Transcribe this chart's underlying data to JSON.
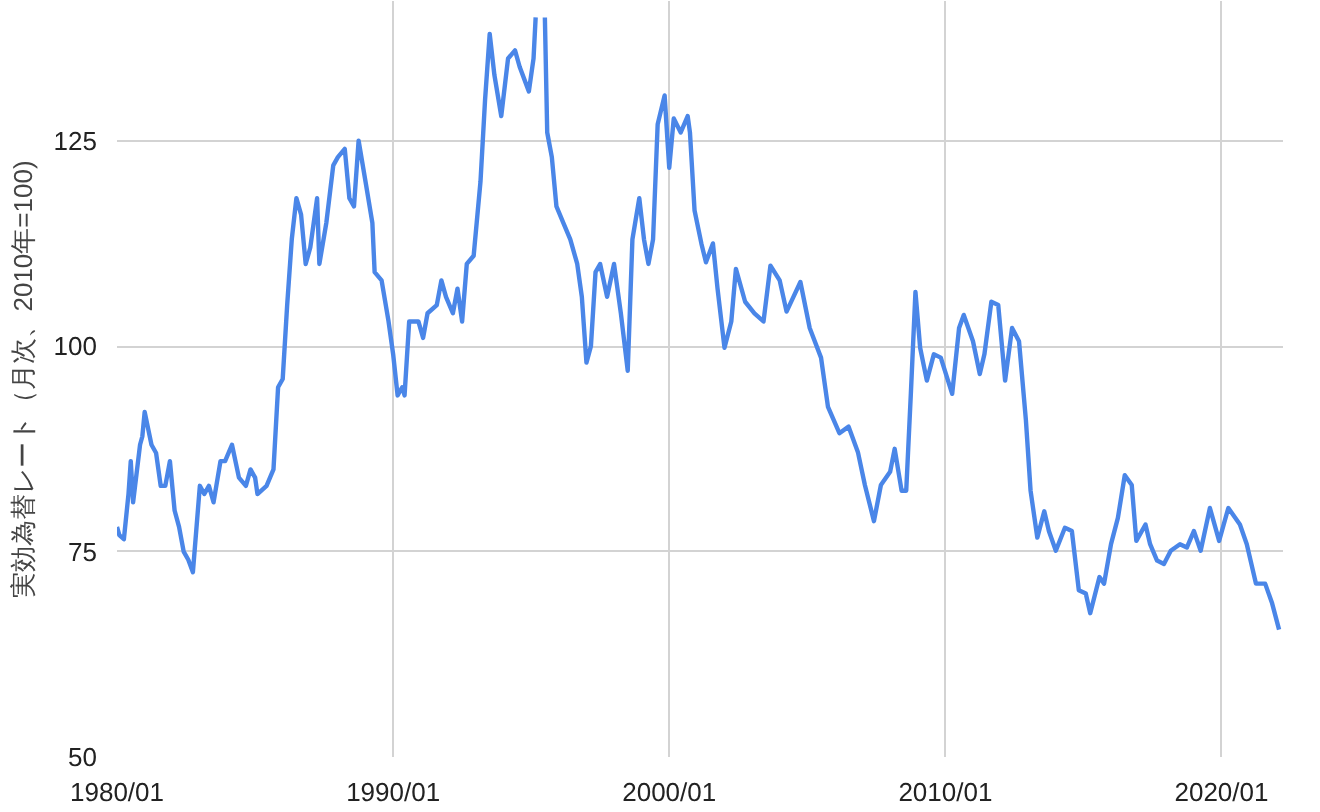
{
  "chart_data": {
    "type": "line",
    "ylabel": "実効為替レート（月次、2010年=100)",
    "xlim": [
      "1980-01",
      "2022-03-25"
    ],
    "ylim": [
      50,
      142
    ],
    "xticks": [
      {
        "value": "1980-01",
        "label": "1980/01"
      },
      {
        "value": "1990-01",
        "label": "1990/01"
      },
      {
        "value": "2000-01",
        "label": "2000/01"
      },
      {
        "value": "2010-01",
        "label": "2010/01"
      },
      {
        "value": "2020-01",
        "label": "2020/01"
      }
    ],
    "yticks": [
      50,
      75,
      100,
      125
    ],
    "grid": true,
    "line_style": "solid",
    "series": [
      {
        "color": "#4a86e8",
        "x": [
          "1980-01",
          "1980-02",
          "1980-04",
          "1980-06",
          "1980-07",
          "1980-08",
          "1980-11",
          "1980-12",
          "1981-01",
          "1981-04",
          "1981-06",
          "1981-08",
          "1981-10",
          "1981-12",
          "1982-02",
          "1982-04",
          "1982-06",
          "1982-08",
          "1982-10",
          "1983-01",
          "1983-03",
          "1983-05",
          "1983-07",
          "1983-10",
          "1983-12",
          "1984-03",
          "1984-06",
          "1984-09",
          "1984-11",
          "1985-01",
          "1985-02",
          "1985-06",
          "1985-09",
          "1985-11",
          "1986-01",
          "1986-03",
          "1986-05",
          "1986-07",
          "1986-09",
          "1986-11",
          "1987-01",
          "1987-04",
          "1987-05",
          "1987-08",
          "1987-11",
          "1988-01",
          "1988-04",
          "1988-06",
          "1988-08",
          "1988-10",
          "1989-01",
          "1989-04",
          "1989-05",
          "1989-08",
          "1989-11",
          "1990-01",
          "1990-03",
          "1990-05",
          "1990-06",
          "1990-08",
          "1990-12",
          "1991-02",
          "1991-04",
          "1991-08",
          "1991-10",
          "1991-12",
          "1992-03",
          "1992-05",
          "1992-07",
          "1992-09",
          "1992-12",
          "1993-03",
          "1993-05",
          "1993-07",
          "1993-09",
          "1993-12",
          "1994-03",
          "1994-06",
          "1994-08",
          "1994-12",
          "1995-02",
          "1995-03",
          "1995-05",
          "1995-07",
          "1995-08",
          "1995-10",
          "1995-12",
          "1996-03",
          "1996-06",
          "1996-09",
          "1996-11",
          "1997-01",
          "1997-03",
          "1997-05",
          "1997-07",
          "1997-10",
          "1998-01",
          "1998-04",
          "1998-07",
          "1998-09",
          "1998-12",
          "1999-02",
          "1999-04",
          "1999-06",
          "1999-08",
          "1999-11",
          "2000-01",
          "2000-03",
          "2000-06",
          "2000-09",
          "2000-10",
          "2000-12",
          "2001-03",
          "2001-05",
          "2001-08",
          "2001-10",
          "2002-01",
          "2002-04",
          "2002-06",
          "2002-10",
          "2003-02",
          "2003-06",
          "2003-09",
          "2004-01",
          "2004-04",
          "2004-07",
          "2004-10",
          "2005-02",
          "2005-07",
          "2005-10",
          "2006-03",
          "2006-07",
          "2006-11",
          "2007-02",
          "2007-06",
          "2007-09",
          "2008-01",
          "2008-03",
          "2008-06",
          "2008-08",
          "2008-10",
          "2008-12",
          "2009-02",
          "2009-05",
          "2009-08",
          "2009-11",
          "2010-04",
          "2010-07",
          "2010-09",
          "2011-01",
          "2011-04",
          "2011-06",
          "2011-09",
          "2011-12",
          "2012-03",
          "2012-06",
          "2012-09",
          "2012-12",
          "2013-02",
          "2013-05",
          "2013-08",
          "2013-10",
          "2014-01",
          "2014-05",
          "2014-08",
          "2014-11",
          "2015-02",
          "2015-04",
          "2015-08",
          "2015-10",
          "2016-01",
          "2016-04",
          "2016-07",
          "2016-10",
          "2016-12",
          "2017-04",
          "2017-06",
          "2017-09",
          "2017-12",
          "2018-03",
          "2018-07",
          "2018-10",
          "2019-01",
          "2019-04",
          "2019-08",
          "2019-12",
          "2020-04",
          "2020-09",
          "2020-12",
          "2021-04",
          "2021-08",
          "2021-11",
          "2022-02"
        ],
        "values": [
          78,
          77,
          76.5,
          82,
          86,
          81,
          88,
          89,
          92,
          88,
          87,
          83,
          83,
          86,
          80,
          78,
          75,
          74,
          72.5,
          83,
          82,
          83,
          81,
          86,
          86,
          88,
          84,
          83,
          85,
          84,
          82,
          83,
          85,
          95,
          96,
          105,
          113,
          118,
          116,
          110,
          112,
          118,
          110,
          115,
          122,
          123,
          124,
          118,
          117,
          125,
          120,
          115,
          109,
          108,
          103,
          99,
          94,
          95,
          94,
          103,
          103,
          101,
          104,
          105,
          108,
          106,
          104,
          107,
          103,
          110,
          111,
          120,
          130,
          138,
          133,
          128,
          135,
          136,
          134,
          131,
          135,
          140,
          null,
          140,
          126,
          123,
          117,
          115,
          113,
          110,
          106,
          98,
          100,
          109,
          110,
          106,
          110,
          104,
          97,
          113,
          118,
          113,
          110,
          113,
          127,
          130.5,
          121.7,
          127.7,
          126,
          128,
          126,
          116.5,
          112.5,
          110.2,
          112.5,
          107,
          99.8,
          103,
          109.4,
          105.4,
          104,
          103,
          109.8,
          108,
          104.2,
          106,
          107.8,
          102.2,
          98.6,
          92.6,
          89.4,
          90.2,
          87.1,
          83.1,
          78.7,
          83.1,
          84.7,
          87.5,
          82.4,
          82.4,
          94.2,
          106.6,
          99.8,
          95.8,
          99,
          98.6,
          94.2,
          102.2,
          103.8,
          100.6,
          96.6,
          99,
          105.4,
          105,
          95.8,
          102.2,
          100.6,
          91,
          82.4,
          76.7,
          79.9,
          77.5,
          75.1,
          77.9,
          77.5,
          70.3,
          69.9,
          67.5,
          71.9,
          71.1,
          75.9,
          79.1,
          84.3,
          83.1,
          76.3,
          78.3,
          75.9,
          73.9,
          73.5,
          75.1,
          75.9,
          75.5,
          77.5,
          75.1,
          80.3,
          76.3,
          80.3,
          78.3,
          75.9,
          71.1,
          71.1,
          68.7,
          65.5
        ]
      }
    ]
  }
}
